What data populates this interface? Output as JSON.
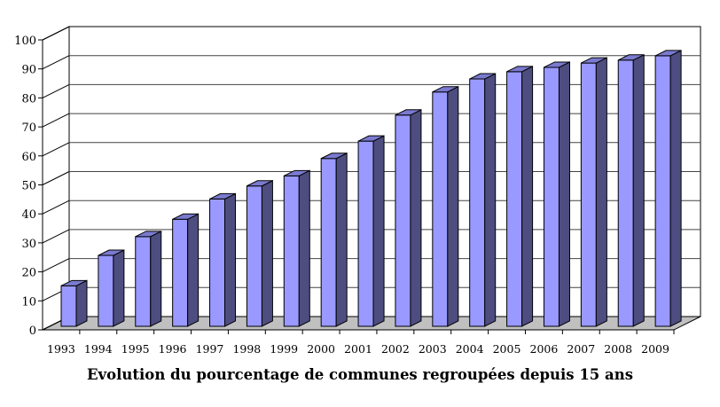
{
  "chart_data": {
    "type": "bar",
    "style": "3d-column",
    "title": "Evolution du pourcentage de communes regroupées depuis 15 ans",
    "xlabel": "",
    "ylabel": "",
    "ylim": [
      0,
      100
    ],
    "yticks": [
      0,
      10,
      20,
      30,
      40,
      50,
      60,
      70,
      80,
      90,
      100
    ],
    "grid": true,
    "legend": "none",
    "categories": [
      "1993",
      "1994",
      "1995",
      "1996",
      "1997",
      "1998",
      "1999",
      "2000",
      "2001",
      "2002",
      "2003",
      "2004",
      "2005",
      "2006",
      "2007",
      "2008",
      "2009"
    ],
    "values": [
      14,
      24.5,
      31,
      37,
      44,
      48.5,
      52,
      58,
      64,
      73,
      81,
      85.5,
      88,
      89.5,
      91,
      92,
      93.5
    ],
    "colors": {
      "front": "#9999ff",
      "side": "#4d4d80",
      "top": "#7a7ad0",
      "floor": "#c0c0c0",
      "outline": "#000000"
    }
  }
}
